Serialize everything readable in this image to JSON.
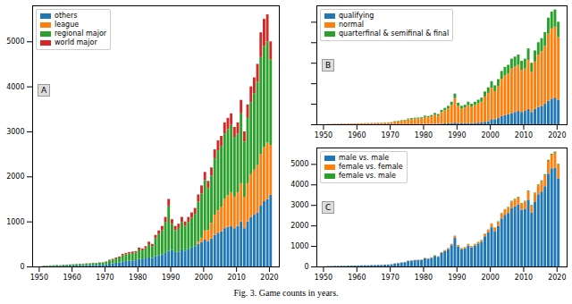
{
  "caption": "Fig. 3.  Game counts in years.",
  "chart_data": [
    {
      "type": "bar",
      "stacked": true,
      "annotations": [
        "A"
      ],
      "legend": "upper left",
      "grid": false,
      "x": [
        1950,
        1951,
        1952,
        1953,
        1954,
        1955,
        1956,
        1957,
        1958,
        1959,
        1960,
        1961,
        1962,
        1963,
        1964,
        1965,
        1966,
        1967,
        1968,
        1969,
        1970,
        1971,
        1972,
        1973,
        1974,
        1975,
        1976,
        1977,
        1978,
        1979,
        1980,
        1981,
        1982,
        1983,
        1984,
        1985,
        1986,
        1987,
        1988,
        1989,
        1990,
        1991,
        1992,
        1993,
        1994,
        1995,
        1996,
        1997,
        1998,
        1999,
        2000,
        2001,
        2002,
        2003,
        2004,
        2005,
        2006,
        2007,
        2008,
        2009,
        2010,
        2011,
        2012,
        2013,
        2014,
        2015,
        2016,
        2017,
        2018,
        2019,
        2020
      ],
      "xlim": [
        1948,
        2023
      ],
      "xticks": [
        1950,
        1960,
        1970,
        1980,
        1990,
        2000,
        2010,
        2020
      ],
      "ylim": [
        0,
        5800
      ],
      "yticks": [
        0,
        1000,
        2000,
        3000,
        4000,
        5000
      ],
      "series": [
        {
          "name": "others",
          "color": "#1f77b4",
          "values": [
            2,
            8,
            8,
            10,
            12,
            14,
            12,
            16,
            16,
            18,
            20,
            22,
            24,
            24,
            28,
            28,
            32,
            32,
            36,
            38,
            44,
            60,
            68,
            80,
            88,
            112,
            120,
            128,
            132,
            136,
            168,
            160,
            180,
            200,
            190,
            230,
            250,
            270,
            300,
            350,
            370,
            320,
            330,
            380,
            350,
            380,
            420,
            450,
            500,
            540,
            600,
            560,
            620,
            700,
            750,
            780,
            850,
            880,
            900,
            850,
            900,
            1000,
            850,
            1000,
            1100,
            1150,
            1200,
            1350,
            1450,
            1500,
            1600
          ]
        },
        {
          "name": "league",
          "color": "#ff7f0e",
          "values": [
            0,
            0,
            0,
            0,
            0,
            0,
            0,
            0,
            0,
            0,
            0,
            0,
            0,
            0,
            0,
            0,
            0,
            0,
            0,
            0,
            0,
            0,
            0,
            0,
            0,
            0,
            0,
            0,
            0,
            0,
            0,
            0,
            0,
            0,
            0,
            0,
            0,
            0,
            0,
            0,
            0,
            0,
            0,
            0,
            0,
            0,
            0,
            0,
            50,
            100,
            200,
            250,
            350,
            450,
            500,
            550,
            650,
            700,
            750,
            700,
            750,
            850,
            700,
            850,
            950,
            1000,
            1050,
            1150,
            1200,
            1250,
            1100
          ]
        },
        {
          "name": "regional major",
          "color": "#2ca02c",
          "values": [
            3,
            11,
            11,
            14,
            16,
            19,
            16,
            22,
            22,
            24,
            27,
            30,
            33,
            33,
            38,
            38,
            44,
            44,
            49,
            52,
            55,
            75,
            85,
            100,
            110,
            140,
            150,
            160,
            165,
            170,
            210,
            200,
            225,
            295,
            260,
            400,
            470,
            540,
            690,
            1000,
            575,
            490,
            525,
            610,
            550,
            610,
            660,
            720,
            890,
            980,
            1120,
            930,
            1050,
            1250,
            1330,
            1350,
            1450,
            1470,
            1500,
            1330,
            1300,
            1550,
            1220,
            1450,
            1600,
            1700,
            1850,
            2150,
            2250,
            2250,
            1900
          ]
        },
        {
          "name": "world major",
          "color": "#d62728",
          "values": [
            0,
            1,
            1,
            1,
            2,
            2,
            2,
            2,
            2,
            3,
            3,
            3,
            3,
            3,
            4,
            4,
            4,
            4,
            5,
            5,
            11,
            15,
            17,
            20,
            22,
            28,
            30,
            32,
            33,
            34,
            42,
            40,
            45,
            55,
            50,
            70,
            80,
            90,
            110,
            150,
            105,
            90,
            95,
            110,
            100,
            110,
            120,
            130,
            160,
            180,
            180,
            160,
            180,
            200,
            220,
            220,
            250,
            250,
            250,
            220,
            250,
            300,
            230,
            300,
            350,
            350,
            400,
            550,
            600,
            600,
            400
          ]
        }
      ]
    },
    {
      "type": "bar",
      "stacked": true,
      "annotations": [
        "B"
      ],
      "legend": "upper left",
      "grid": false,
      "tick_labels": "x",
      "x": [
        1950,
        1951,
        1952,
        1953,
        1954,
        1955,
        1956,
        1957,
        1958,
        1959,
        1960,
        1961,
        1962,
        1963,
        1964,
        1965,
        1966,
        1967,
        1968,
        1969,
        1970,
        1971,
        1972,
        1973,
        1974,
        1975,
        1976,
        1977,
        1978,
        1979,
        1980,
        1981,
        1982,
        1983,
        1984,
        1985,
        1986,
        1987,
        1988,
        1989,
        1990,
        1991,
        1992,
        1993,
        1994,
        1995,
        1996,
        1997,
        1998,
        1999,
        2000,
        2001,
        2002,
        2003,
        2004,
        2005,
        2006,
        2007,
        2008,
        2009,
        2010,
        2011,
        2012,
        2013,
        2014,
        2015,
        2016,
        2017,
        2018,
        2019,
        2020
      ],
      "xlim": [
        1948,
        2023
      ],
      "xticks": [
        1950,
        1960,
        1970,
        1980,
        1990,
        2000,
        2010,
        2020
      ],
      "ylim": [
        0,
        5800
      ],
      "yticks": [
        0,
        1000,
        2000,
        3000,
        4000,
        5000
      ],
      "series": [
        {
          "name": "qualifying",
          "color": "#1f77b4",
          "values": [
            0,
            0,
            0,
            0,
            0,
            0,
            0,
            0,
            0,
            0,
            0,
            0,
            0,
            0,
            0,
            0,
            0,
            0,
            0,
            0,
            0,
            0,
            0,
            0,
            0,
            0,
            0,
            0,
            0,
            0,
            10,
            10,
            15,
            20,
            20,
            30,
            40,
            50,
            60,
            80,
            60,
            50,
            55,
            65,
            60,
            70,
            80,
            90,
            120,
            150,
            250,
            250,
            300,
            400,
            450,
            480,
            550,
            600,
            650,
            600,
            650,
            750,
            600,
            750,
            850,
            900,
            1000,
            1150,
            1250,
            1300,
            1200
          ]
        },
        {
          "name": "normal",
          "color": "#ff7f0e",
          "values": [
            4,
            17,
            17,
            21,
            25,
            30,
            25,
            34,
            34,
            38,
            42,
            47,
            51,
            51,
            59,
            59,
            68,
            68,
            76,
            81,
            94,
            128,
            145,
            170,
            187,
            238,
            255,
            272,
            280,
            289,
            347,
            330,
            367,
            447,
            405,
            565,
            640,
            715,
            875,
            1195,
            833,
            715,
            753,
            870,
            790,
            865,
            940,
            1015,
            1240,
            1380,
            1535,
            1365,
            1570,
            1810,
            1930,
            1985,
            2170,
            2205,
            2240,
            2035,
            2070,
            2395,
            1950,
            2310,
            2550,
            2670,
            2825,
            3270,
            3425,
            3460,
            3050
          ]
        },
        {
          "name": "quarterfinal & semifinal & final",
          "color": "#2ca02c",
          "values": [
            1,
            3,
            3,
            4,
            5,
            5,
            5,
            6,
            6,
            7,
            8,
            8,
            9,
            9,
            11,
            11,
            12,
            12,
            14,
            14,
            16,
            22,
            25,
            30,
            33,
            42,
            45,
            48,
            50,
            51,
            63,
            60,
            68,
            83,
            75,
            105,
            120,
            135,
            165,
            225,
            157,
            135,
            142,
            165,
            150,
            165,
            180,
            195,
            240,
            270,
            315,
            285,
            330,
            390,
            420,
            435,
            480,
            495,
            510,
            465,
            480,
            555,
            450,
            540,
            600,
            630,
            675,
            780,
            825,
            840,
            750
          ]
        }
      ]
    },
    {
      "type": "bar",
      "stacked": true,
      "annotations": [
        "C"
      ],
      "legend": "upper left",
      "grid": false,
      "x": [
        1950,
        1951,
        1952,
        1953,
        1954,
        1955,
        1956,
        1957,
        1958,
        1959,
        1960,
        1961,
        1962,
        1963,
        1964,
        1965,
        1966,
        1967,
        1968,
        1969,
        1970,
        1971,
        1972,
        1973,
        1974,
        1975,
        1976,
        1977,
        1978,
        1979,
        1980,
        1981,
        1982,
        1983,
        1984,
        1985,
        1986,
        1987,
        1988,
        1989,
        1990,
        1991,
        1992,
        1993,
        1994,
        1995,
        1996,
        1997,
        1998,
        1999,
        2000,
        2001,
        2002,
        2003,
        2004,
        2005,
        2006,
        2007,
        2008,
        2009,
        2010,
        2011,
        2012,
        2013,
        2014,
        2015,
        2016,
        2017,
        2018,
        2019,
        2020
      ],
      "xlim": [
        1948,
        2023
      ],
      "xticks": [
        1950,
        1960,
        1970,
        1980,
        1990,
        2000,
        2010,
        2020
      ],
      "ylim": [
        0,
        5800
      ],
      "yticks": [
        0,
        1000,
        2000,
        3000,
        4000,
        5000
      ],
      "series": [
        {
          "name": "male vs. male",
          "color": "#1f77b4",
          "values": [
            5,
            20,
            20,
            25,
            29,
            34,
            29,
            38,
            38,
            43,
            47,
            52,
            57,
            57,
            66,
            66,
            76,
            76,
            85,
            90,
            104,
            142,
            161,
            190,
            209,
            266,
            285,
            304,
            313,
            323,
            395,
            376,
            423,
            517,
            470,
            658,
            752,
            846,
            1034,
            1410,
            977,
            837,
            884,
            1023,
            930,
            1023,
            1116,
            1209,
            1472,
            1656,
            1911,
            1729,
            1980,
            2340,
            2520,
            2610,
            2848,
            2937,
            3026,
            2759,
            2816,
            3256,
            2640,
            3168,
            3520,
            3654,
            3915,
            4524,
            4785,
            4816,
            4300
          ]
        },
        {
          "name": "female vs. female",
          "color": "#ff7f0e",
          "values": [
            0,
            0,
            0,
            0,
            1,
            1,
            1,
            2,
            2,
            2,
            3,
            3,
            3,
            3,
            4,
            4,
            4,
            4,
            5,
            5,
            6,
            8,
            9,
            10,
            11,
            14,
            15,
            16,
            17,
            17,
            21,
            20,
            23,
            28,
            25,
            35,
            40,
            45,
            55,
            75,
            63,
            54,
            57,
            66,
            60,
            66,
            72,
            78,
            112,
            126,
            168,
            152,
            198,
            234,
            252,
            261,
            320,
            330,
            340,
            310,
            352,
            407,
            330,
            396,
            440,
            504,
            540,
            624,
            660,
            728,
            650
          ]
        },
        {
          "name": "female vs. male",
          "color": "#2ca02c",
          "values": [
            0,
            0,
            0,
            0,
            0,
            0,
            0,
            0,
            0,
            0,
            0,
            0,
            0,
            0,
            0,
            0,
            0,
            0,
            0,
            0,
            0,
            0,
            0,
            0,
            0,
            0,
            0,
            0,
            0,
            0,
            4,
            4,
            4,
            5,
            5,
            7,
            8,
            9,
            11,
            15,
            10,
            9,
            9,
            11,
            10,
            11,
            12,
            13,
            16,
            18,
            21,
            19,
            22,
            26,
            28,
            29,
            32,
            33,
            34,
            31,
            32,
            37,
            30,
            36,
            40,
            42,
            45,
            52,
            55,
            56,
            50
          ]
        }
      ]
    }
  ]
}
